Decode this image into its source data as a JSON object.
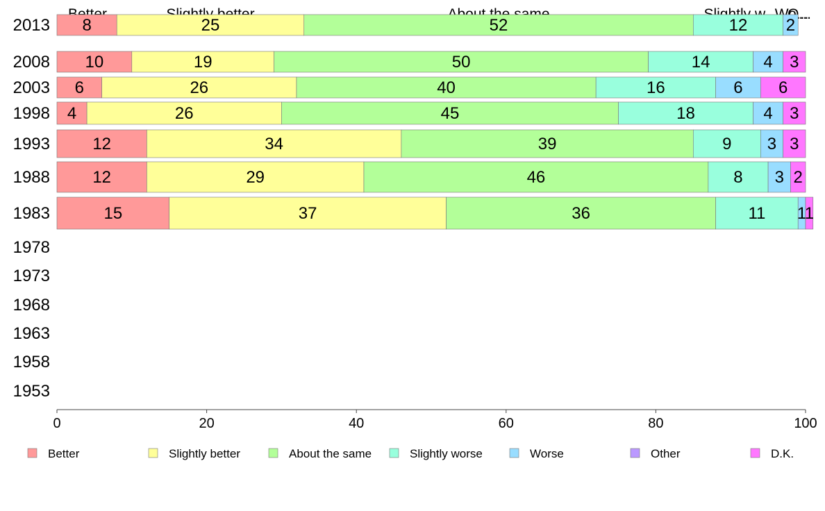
{
  "chart_data": {
    "type": "bar",
    "orientation": "horizontal",
    "stacked": true,
    "xlim": [
      0,
      100
    ],
    "x_ticks": [
      0,
      20,
      40,
      60,
      80,
      100
    ],
    "grid": false,
    "legend_position": "bottom",
    "categories": [
      "2013",
      "2008",
      "2003",
      "1998",
      "1993",
      "1988",
      "1983",
      "1978",
      "1973",
      "1968",
      "1963",
      "1958",
      "1953"
    ],
    "column_headers": [
      "Better",
      "Slightly better",
      "About the same",
      "Slightly w...",
      "Wo...",
      "O..."
    ],
    "series": [
      {
        "name": "Better",
        "color": "#FF9999",
        "values": [
          8,
          10,
          6,
          4,
          12,
          12,
          15,
          null,
          null,
          null,
          null,
          null,
          null
        ]
      },
      {
        "name": "Slightly better",
        "color": "#FFFF99",
        "values": [
          25,
          19,
          26,
          26,
          34,
          29,
          37,
          null,
          null,
          null,
          null,
          null,
          null
        ]
      },
      {
        "name": "About the same",
        "color": "#B3FF99",
        "values": [
          52,
          50,
          40,
          45,
          39,
          46,
          36,
          null,
          null,
          null,
          null,
          null,
          null
        ]
      },
      {
        "name": "Slightly worse",
        "color": "#99FFDD",
        "values": [
          12,
          14,
          16,
          18,
          9,
          8,
          11,
          null,
          null,
          null,
          null,
          null,
          null
        ]
      },
      {
        "name": "Worse",
        "color": "#99DDFF",
        "values": [
          2,
          4,
          6,
          4,
          3,
          3,
          1,
          null,
          null,
          null,
          null,
          null,
          null
        ]
      },
      {
        "name": "Other",
        "color": "#BB99FF",
        "values": [
          0,
          0,
          0,
          0,
          0,
          0,
          0,
          null,
          null,
          null,
          null,
          null,
          null
        ]
      },
      {
        "name": "D.K.",
        "color": "#FF77FF",
        "values": [
          0,
          3,
          6,
          3,
          3,
          2,
          1,
          null,
          null,
          null,
          null,
          null,
          null
        ]
      }
    ],
    "legend": [
      "Better",
      "Slightly better",
      "About the same",
      "Slightly worse",
      "Worse",
      "Other",
      "D.K."
    ]
  }
}
